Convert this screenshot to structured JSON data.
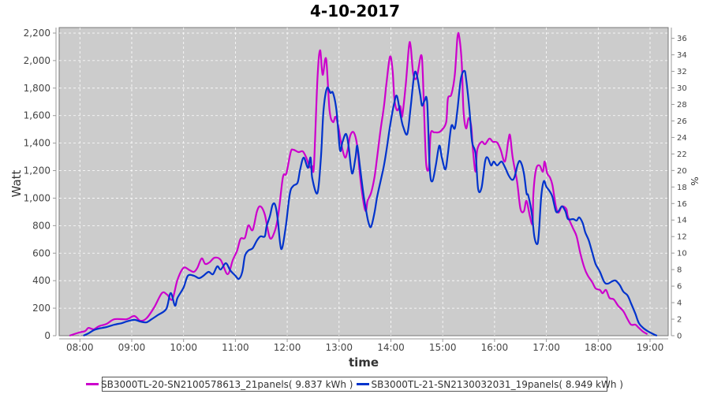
{
  "chart_data": {
    "type": "line",
    "title": "4-10-2017",
    "xlabel": "time",
    "ylabel": "Watt",
    "y2label": "%",
    "x_units": "minutes since midnight",
    "xlim": [
      456,
      1161
    ],
    "ylim": [
      0,
      2240
    ],
    "y2lim": [
      0,
      37.3
    ],
    "grid": true,
    "legend_position": "bottom",
    "x_ticks": [
      {
        "v": 480,
        "label": "08:00"
      },
      {
        "v": 540,
        "label": "09:00"
      },
      {
        "v": 600,
        "label": "10:00"
      },
      {
        "v": 660,
        "label": "11:00"
      },
      {
        "v": 720,
        "label": "12:00"
      },
      {
        "v": 780,
        "label": "13:00"
      },
      {
        "v": 840,
        "label": "14:00"
      },
      {
        "v": 900,
        "label": "15:00"
      },
      {
        "v": 960,
        "label": "16:00"
      },
      {
        "v": 1020,
        "label": "17:00"
      },
      {
        "v": 1080,
        "label": "18:00"
      },
      {
        "v": 1140,
        "label": "19:00"
      }
    ],
    "y_ticks": [
      {
        "v": 0,
        "label": "0"
      },
      {
        "v": 200,
        "label": "200"
      },
      {
        "v": 400,
        "label": "400"
      },
      {
        "v": 600,
        "label": "600"
      },
      {
        "v": 800,
        "label": "800"
      },
      {
        "v": 1000,
        "label": "1,000"
      },
      {
        "v": 1200,
        "label": "1,200"
      },
      {
        "v": 1400,
        "label": "1,400"
      },
      {
        "v": 1600,
        "label": "1,600"
      },
      {
        "v": 1800,
        "label": "1,800"
      },
      {
        "v": 2000,
        "label": "2,000"
      },
      {
        "v": 2200,
        "label": "2,200"
      }
    ],
    "y2_ticks": [
      {
        "v": 0,
        "label": "0"
      },
      {
        "v": 2,
        "label": "2"
      },
      {
        "v": 4,
        "label": "4"
      },
      {
        "v": 6,
        "label": "6"
      },
      {
        "v": 8,
        "label": "8"
      },
      {
        "v": 10,
        "label": "10"
      },
      {
        "v": 12,
        "label": "12"
      },
      {
        "v": 14,
        "label": "14"
      },
      {
        "v": 16,
        "label": "16"
      },
      {
        "v": 18,
        "label": "18"
      },
      {
        "v": 20,
        "label": "20"
      },
      {
        "v": 22,
        "label": "22"
      },
      {
        "v": 24,
        "label": "24"
      },
      {
        "v": 26,
        "label": "26"
      },
      {
        "v": 28,
        "label": "28"
      },
      {
        "v": 30,
        "label": "30"
      },
      {
        "v": 32,
        "label": "32"
      },
      {
        "v": 34,
        "label": "34"
      },
      {
        "v": 36,
        "label": "36"
      }
    ],
    "series": [
      {
        "name": "SB3000TL-20-SN2100578613_21panels( 9.837 kWh )",
        "color": "#cc00cc",
        "x": [
          468,
          479,
          486,
          490,
          496,
          502,
          511,
          520,
          534,
          543,
          550,
          557,
          566,
          575,
          581,
          587,
          593,
          600,
          607,
          612,
          616,
          621,
          625,
          630,
          636,
          643,
          651,
          657,
          662,
          666,
          671,
          675,
          680,
          685,
          689,
          694,
          700,
          706,
          710,
          715,
          719,
          724,
          727,
          733,
          738,
          742,
          746,
          749,
          751,
          755,
          758,
          761,
          765,
          769,
          773,
          776,
          779,
          783,
          787,
          790,
          793,
          797,
          801,
          804,
          808,
          811,
          813,
          817,
          821,
          824,
          828,
          832,
          835,
          839,
          842,
          844,
          847,
          851,
          853,
          857,
          861,
          863,
          866,
          870,
          875,
          877,
          879,
          881,
          884,
          886,
          890,
          895,
          899,
          904,
          906,
          910,
          914,
          917,
          919,
          922,
          924,
          927,
          930,
          933,
          935,
          938,
          940,
          945,
          949,
          954,
          958,
          963,
          967,
          972,
          976,
          978,
          981,
          986,
          990,
          994,
          997,
          1001,
          1004,
          1005,
          1008,
          1012,
          1016,
          1018,
          1021,
          1024,
          1027,
          1031,
          1034,
          1038,
          1043,
          1045,
          1051,
          1055,
          1059,
          1064,
          1068,
          1073,
          1077,
          1082,
          1085,
          1089,
          1093,
          1098,
          1103,
          1109,
          1114,
          1118,
          1123,
          1127,
          1132,
          1137
        ],
        "y": [
          0,
          23,
          34,
          57,
          46,
          69,
          86,
          120,
          120,
          143,
          109,
          126,
          206,
          310,
          298,
          264,
          407,
          493,
          476,
          464,
          493,
          562,
          522,
          533,
          567,
          550,
          447,
          550,
          619,
          705,
          711,
          802,
          768,
          905,
          940,
          882,
          710,
          768,
          894,
          1152,
          1180,
          1335,
          1352,
          1335,
          1340,
          1295,
          1226,
          1232,
          1238,
          1868,
          2075,
          1897,
          2012,
          1639,
          1553,
          1593,
          1524,
          1381,
          1295,
          1352,
          1455,
          1478,
          1381,
          1180,
          980,
          905,
          980,
          1037,
          1152,
          1295,
          1496,
          1668,
          1840,
          2029,
          1926,
          1725,
          1639,
          1668,
          1593,
          1811,
          2109,
          2097,
          1897,
          1879,
          2040,
          1897,
          1524,
          1238,
          1226,
          1467,
          1478,
          1478,
          1496,
          1553,
          1725,
          1753,
          1897,
          2166,
          2178,
          1982,
          1639,
          1507,
          1582,
          1524,
          1352,
          1192,
          1352,
          1410,
          1392,
          1433,
          1410,
          1404,
          1352,
          1266,
          1421,
          1455,
          1295,
          1123,
          923,
          905,
          980,
          865,
          819,
          1037,
          1209,
          1238,
          1192,
          1266,
          1180,
          1152,
          1094,
          940,
          894,
          940,
          922,
          865,
          779,
          722,
          607,
          493,
          436,
          390,
          344,
          332,
          309,
          332,
          275,
          264,
          218,
          178,
          120,
          80,
          80,
          57,
          29,
          11
        ]
      },
      {
        "name": "SB3000TL-21-SN2130032031_19panels( 8.949 kWh )",
        "color": "#0033cc",
        "x": [
          484,
          490,
          496,
          502,
          511,
          520,
          529,
          534,
          543,
          550,
          557,
          563,
          570,
          580,
          585,
          590,
          593,
          600,
          605,
          612,
          618,
          623,
          629,
          634,
          639,
          643,
          649,
          654,
          660,
          664,
          668,
          671,
          675,
          680,
          685,
          689,
          694,
          696,
          700,
          703,
          706,
          709,
          713,
          718,
          723,
          727,
          732,
          735,
          739,
          744,
          747,
          749,
          755,
          759,
          762,
          766,
          770,
          773,
          777,
          781,
          784,
          788,
          791,
          795,
          799,
          801,
          804,
          808,
          811,
          814,
          817,
          821,
          824,
          828,
          832,
          835,
          839,
          844,
          847,
          851,
          854,
          859,
          863,
          867,
          870,
          874,
          876,
          879,
          882,
          885,
          888,
          892,
          896,
          899,
          903,
          906,
          910,
          914,
          917,
          921,
          925,
          927,
          931,
          934,
          938,
          941,
          945,
          949,
          952,
          956,
          959,
          963,
          968,
          972,
          976,
          980,
          983,
          987,
          990,
          994,
          997,
          999,
          1003,
          1006,
          1009,
          1011,
          1014,
          1017,
          1020,
          1024,
          1027,
          1031,
          1034,
          1038,
          1042,
          1045,
          1051,
          1055,
          1058,
          1062,
          1065,
          1069,
          1073,
          1077,
          1082,
          1087,
          1091,
          1096,
          1100,
          1105,
          1109,
          1114,
          1118,
          1123,
          1127,
          1132,
          1137,
          1144,
          1148
        ],
        "y": [
          0,
          17,
          40,
          52,
          63,
          80,
          92,
          103,
          115,
          103,
          97,
          120,
          149,
          195,
          310,
          218,
          275,
          350,
          436,
          436,
          418,
          436,
          464,
          447,
          504,
          481,
          527,
          476,
          436,
          413,
          464,
          579,
          619,
          636,
          693,
          722,
          722,
          791,
          871,
          951,
          951,
          848,
          630,
          779,
          1031,
          1089,
          1112,
          1209,
          1295,
          1220,
          1295,
          1146,
          1037,
          1295,
          1639,
          1800,
          1765,
          1765,
          1639,
          1352,
          1410,
          1467,
          1381,
          1180,
          1295,
          1381,
          1238,
          1037,
          922,
          825,
          791,
          894,
          1008,
          1123,
          1238,
          1352,
          1524,
          1696,
          1742,
          1610,
          1524,
          1467,
          1668,
          1897,
          1897,
          1753,
          1673,
          1708,
          1696,
          1209,
          1123,
          1238,
          1381,
          1295,
          1209,
          1324,
          1524,
          1507,
          1639,
          1868,
          1926,
          1868,
          1639,
          1410,
          1324,
          1066,
          1077,
          1266,
          1295,
          1238,
          1266,
          1238,
          1266,
          1226,
          1169,
          1134,
          1152,
          1249,
          1266,
          1180,
          1037,
          1020,
          894,
          722,
          665,
          722,
          1008,
          1123,
          1083,
          1048,
          1008,
          905,
          905,
          940,
          905,
          848,
          848,
          837,
          860,
          819,
          751,
          693,
          607,
          521,
          464,
          390,
          378,
          395,
          401,
          367,
          321,
          292,
          235,
          160,
          92,
          57,
          34,
          11,
          0
        ]
      }
    ]
  }
}
